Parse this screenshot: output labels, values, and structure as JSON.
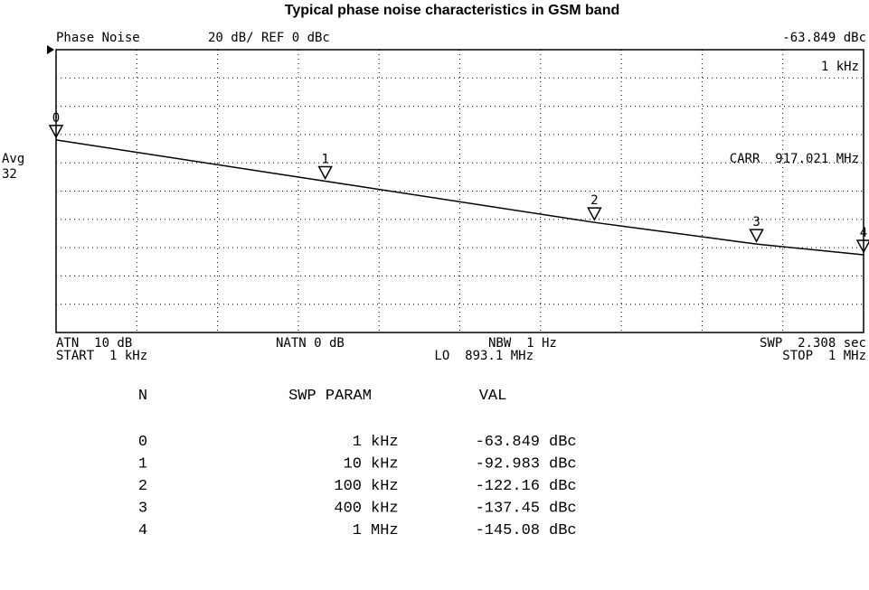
{
  "title": "Typical phase noise characteristics in GSM band",
  "screen": {
    "mode": "Phase Noise",
    "scale": "20 dB/ REF 0 dBc",
    "readout": "-63.849 dBc",
    "marker_freq": "1 kHz",
    "avg": "Avg",
    "avg_count": "32",
    "carr": "CARR  917.021 MHz",
    "atn": "ATN  10 dB",
    "start": "START  1 kHz",
    "natn": "NATN 0 dB",
    "lo": "LO  893.1 MHz",
    "nbw": "NBW  1 Hz",
    "swp": "SWP  2.308 sec",
    "stop": "STOP  1 MHz"
  },
  "chart_data": {
    "type": "line",
    "x": [
      1,
      10,
      100,
      400,
      1000
    ],
    "values": [
      -63.849,
      -92.983,
      -122.16,
      -137.45,
      -145.08
    ],
    "markers": [
      "0",
      "1",
      "2",
      "3",
      "4"
    ],
    "xlog": true,
    "xlim": [
      1,
      1000
    ],
    "ylim": [
      -200,
      0
    ],
    "yticks": [
      -200,
      -180,
      -160,
      -140,
      -120,
      -100,
      -80,
      -60,
      -40,
      -20,
      0
    ],
    "grid": true,
    "color": "#000000"
  },
  "table": {
    "header": [
      "N",
      "SWP PARAM",
      "VAL"
    ],
    "rows": [
      [
        "0",
        "1",
        "kHz",
        "-63.849",
        "dBc"
      ],
      [
        "1",
        "10",
        "kHz",
        "-92.983",
        "dBc"
      ],
      [
        "2",
        "100",
        "kHz",
        "-122.16",
        "dBc"
      ],
      [
        "3",
        "400",
        "kHz",
        "-137.45",
        "dBc"
      ],
      [
        "4",
        "1",
        "MHz",
        "-145.08",
        "dBc"
      ]
    ]
  }
}
